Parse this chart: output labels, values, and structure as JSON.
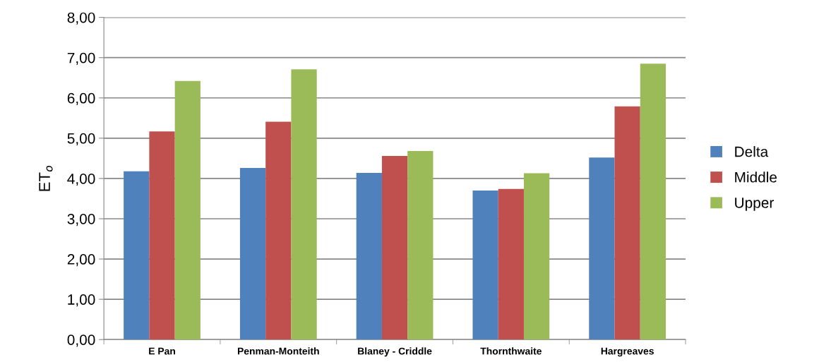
{
  "chart_data": {
    "type": "bar",
    "ylabel": "ET$_{o}$",
    "categories": [
      "E Pan",
      "Penman-Monteith",
      "Blaney - Criddle",
      "Thornthwaite",
      "Hargreaves"
    ],
    "series": [
      {
        "name": "Delta",
        "color": "#4f81bd",
        "values": [
          4.18,
          4.26,
          4.14,
          3.7,
          4.52
        ]
      },
      {
        "name": "Middle",
        "color": "#c0504d",
        "values": [
          5.17,
          5.41,
          4.56,
          3.74,
          5.79
        ]
      },
      {
        "name": "Upper",
        "color": "#9bbb59",
        "values": [
          6.42,
          6.71,
          4.68,
          4.13,
          6.85
        ]
      }
    ],
    "ylim": [
      0,
      8
    ],
    "yticks": [
      {
        "value": 0,
        "label": "0,00"
      },
      {
        "value": 1,
        "label": "1,00"
      },
      {
        "value": 2,
        "label": "2,00"
      },
      {
        "value": 3,
        "label": "3,00"
      },
      {
        "value": 4,
        "label": "4,00"
      },
      {
        "value": 5,
        "label": "5,00"
      },
      {
        "value": 6,
        "label": "6,00"
      },
      {
        "value": 7,
        "label": "7,00"
      },
      {
        "value": 8,
        "label": "8,00"
      }
    ],
    "grid": "y",
    "legend": "right"
  }
}
